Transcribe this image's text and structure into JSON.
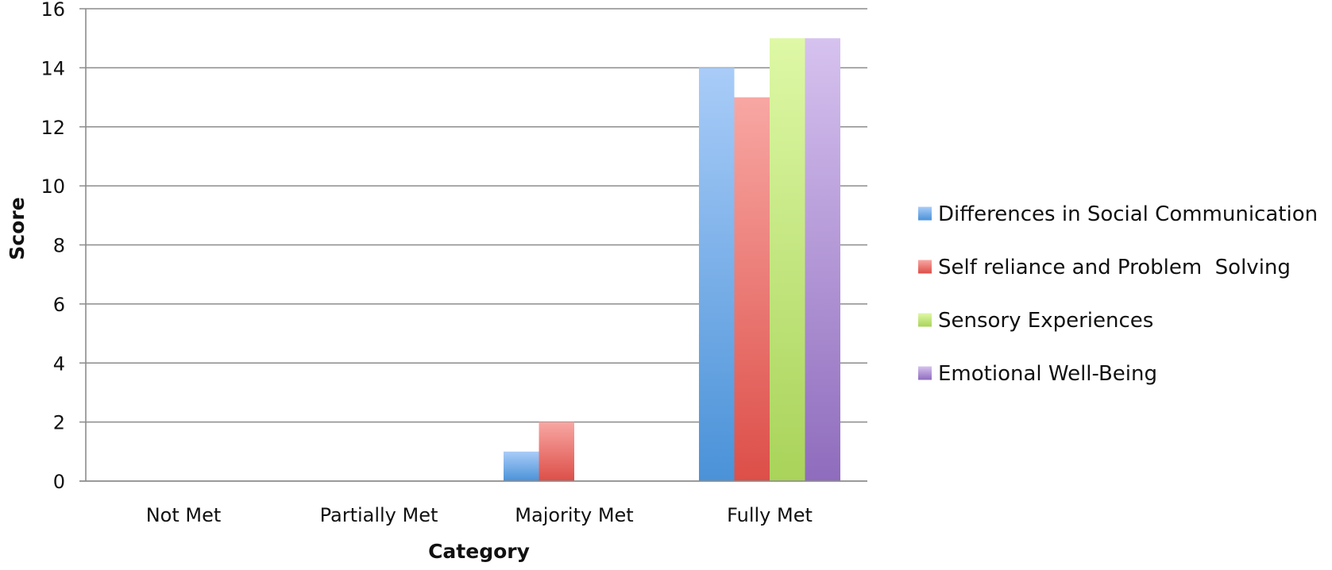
{
  "chart_data": {
    "type": "bar",
    "title": "",
    "xlabel": "Category",
    "ylabel": "Score",
    "categories": [
      "Not Met",
      "Partially Met",
      "Majority Met",
      "Fully Met"
    ],
    "ylim": [
      0,
      16
    ],
    "yticks": [
      0,
      2,
      4,
      6,
      8,
      10,
      12,
      14,
      16
    ],
    "grid": true,
    "legend_position": "right",
    "series": [
      {
        "name": "Differences in Social Communication",
        "values": [
          0,
          0,
          1,
          14
        ],
        "color_top": "#a9ccf8",
        "color_bottom": "#4a92d8"
      },
      {
        "name": "Self reliance and Problem  Solving",
        "values": [
          0,
          0,
          2,
          13
        ],
        "color_top": "#f8a7a3",
        "color_bottom": "#dd4e48"
      },
      {
        "name": "Sensory Experiences",
        "values": [
          0,
          0,
          0,
          15
        ],
        "color_top": "#def8a6",
        "color_bottom": "#a9d35a"
      },
      {
        "name": "Emotional Well-Being",
        "values": [
          0,
          0,
          0,
          15
        ],
        "color_top": "#d6c2ef",
        "color_bottom": "#8f6cbd"
      }
    ]
  }
}
